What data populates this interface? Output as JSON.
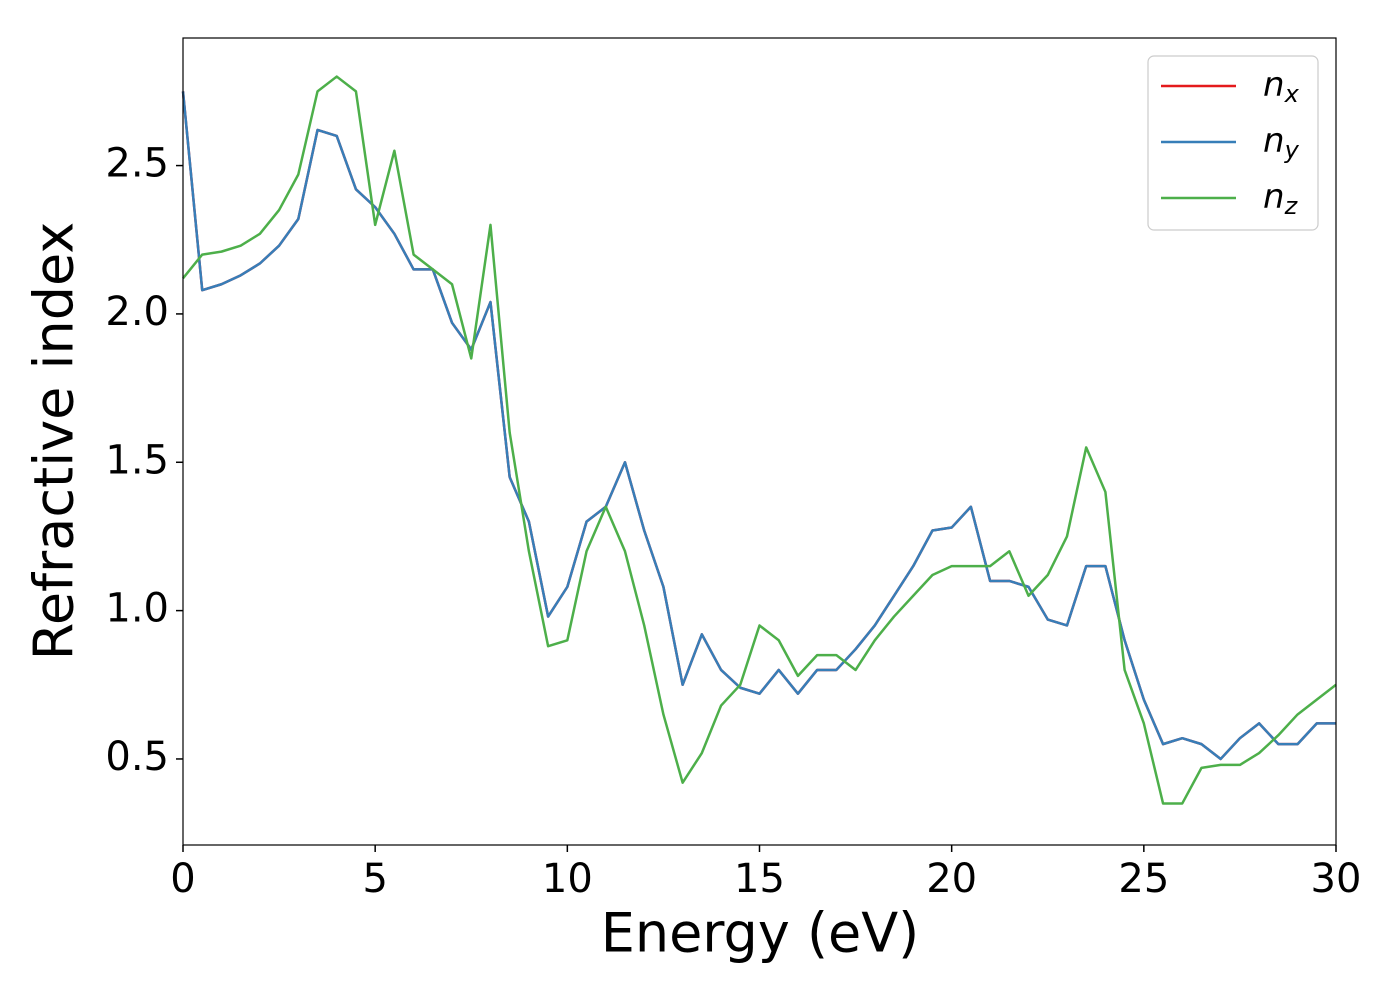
{
  "chart_data": {
    "type": "line",
    "xlabel": "Energy (eV)",
    "ylabel": "Refractive index",
    "x": [
      0,
      0.5,
      1,
      1.5,
      2,
      2.5,
      3,
      3.5,
      4,
      4.5,
      5,
      5.5,
      6,
      6.5,
      7,
      7.5,
      8,
      8.5,
      9,
      9.5,
      10,
      10.5,
      11,
      11.5,
      12,
      12.5,
      13,
      13.5,
      14,
      14.5,
      15,
      15.5,
      16,
      16.5,
      17,
      17.5,
      18,
      18.5,
      19,
      19.5,
      20,
      20.5,
      21,
      21.5,
      22,
      22.5,
      23,
      23.5,
      24,
      24.5,
      25,
      25.5,
      26,
      26.5,
      27,
      27.5,
      28,
      28.5,
      29,
      29.5,
      30
    ],
    "series": [
      {
        "name": "nx",
        "color": "#e41a1c",
        "values": [
          2.75,
          2.08,
          2.1,
          2.13,
          2.17,
          2.23,
          2.32,
          2.62,
          2.6,
          2.42,
          2.36,
          2.27,
          2.15,
          2.15,
          1.97,
          1.88,
          2.04,
          1.45,
          1.3,
          0.98,
          1.08,
          1.3,
          1.35,
          1.5,
          1.27,
          1.08,
          0.75,
          0.92,
          0.8,
          0.74,
          0.72,
          0.8,
          0.72,
          0.8,
          0.8,
          0.87,
          0.95,
          1.05,
          1.15,
          1.27,
          1.28,
          1.35,
          1.1,
          1.1,
          1.08,
          0.97,
          0.95,
          1.15,
          1.15,
          0.9,
          0.7,
          0.55,
          0.57,
          0.55,
          0.5,
          0.57,
          0.62,
          0.55,
          0.55,
          0.62,
          0.62
        ]
      },
      {
        "name": "ny",
        "color": "#377eb8",
        "values": [
          2.75,
          2.08,
          2.1,
          2.13,
          2.17,
          2.23,
          2.32,
          2.62,
          2.6,
          2.42,
          2.36,
          2.27,
          2.15,
          2.15,
          1.97,
          1.88,
          2.04,
          1.45,
          1.3,
          0.98,
          1.08,
          1.3,
          1.35,
          1.5,
          1.27,
          1.08,
          0.75,
          0.92,
          0.8,
          0.74,
          0.72,
          0.8,
          0.72,
          0.8,
          0.8,
          0.87,
          0.95,
          1.05,
          1.15,
          1.27,
          1.28,
          1.35,
          1.1,
          1.1,
          1.08,
          0.97,
          0.95,
          1.15,
          1.15,
          0.9,
          0.7,
          0.55,
          0.57,
          0.55,
          0.5,
          0.57,
          0.62,
          0.55,
          0.55,
          0.62,
          0.62
        ]
      },
      {
        "name": "nz",
        "color": "#4daf4a",
        "values": [
          2.12,
          2.2,
          2.21,
          2.23,
          2.27,
          2.35,
          2.47,
          2.75,
          2.8,
          2.75,
          2.3,
          2.55,
          2.2,
          2.15,
          2.1,
          1.85,
          2.3,
          1.6,
          1.2,
          0.88,
          0.9,
          1.2,
          1.35,
          1.2,
          0.95,
          0.65,
          0.42,
          0.52,
          0.68,
          0.75,
          0.95,
          0.9,
          0.78,
          0.85,
          0.85,
          0.8,
          0.9,
          0.98,
          1.05,
          1.12,
          1.15,
          1.15,
          1.15,
          1.2,
          1.05,
          1.12,
          1.25,
          1.55,
          1.4,
          0.8,
          0.62,
          0.35,
          0.35,
          0.47,
          0.48,
          0.48,
          0.52,
          0.58,
          0.65,
          0.7,
          0.75
        ]
      }
    ],
    "xlim": [
      0,
      30
    ],
    "xticks": [
      0,
      5,
      10,
      15,
      20,
      25,
      30
    ],
    "ylim": [
      0.21,
      2.93
    ],
    "yticks": [
      0.5,
      {
        "value": 1,
        "label": "1.0"
      },
      1.5,
      {
        "value": 2,
        "label": "2.0"
      },
      2.5
    ],
    "legend": "upper right"
  }
}
